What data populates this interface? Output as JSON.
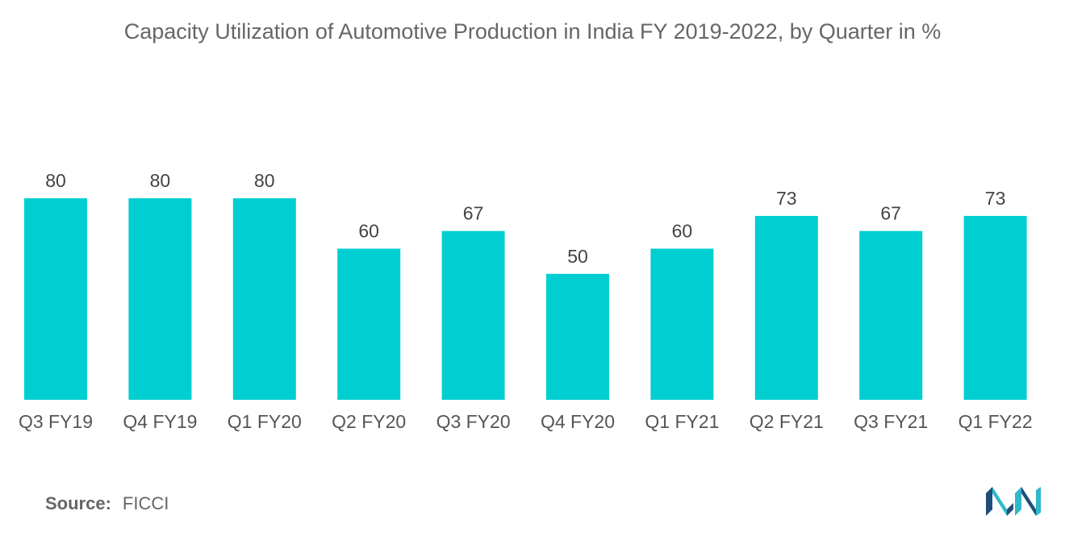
{
  "chart_data": {
    "type": "bar",
    "title": "Capacity Utilization of Automotive Production in India FY 2019-2022, by Quarter in %",
    "categories": [
      "Q3 FY19",
      "Q4 FY19",
      "Q1 FY20",
      "Q2 FY20",
      "Q3 FY20",
      "Q4 FY20",
      "Q1 FY21",
      "Q2 FY21",
      "Q3 FY21",
      "Q1 FY22"
    ],
    "values": [
      80,
      80,
      80,
      60,
      67,
      50,
      60,
      73,
      67,
      73
    ],
    "xlabel": "",
    "ylabel": "",
    "ylim": [
      0,
      80
    ],
    "grid": false,
    "legend": "none",
    "bar_color": "#00CED1"
  },
  "source": {
    "label": "Source:",
    "value": "FICCI"
  },
  "logo": {
    "icon": "mordor-intelligence-logo-icon",
    "colors": [
      "#1F4E79",
      "#2FB8C9"
    ]
  }
}
